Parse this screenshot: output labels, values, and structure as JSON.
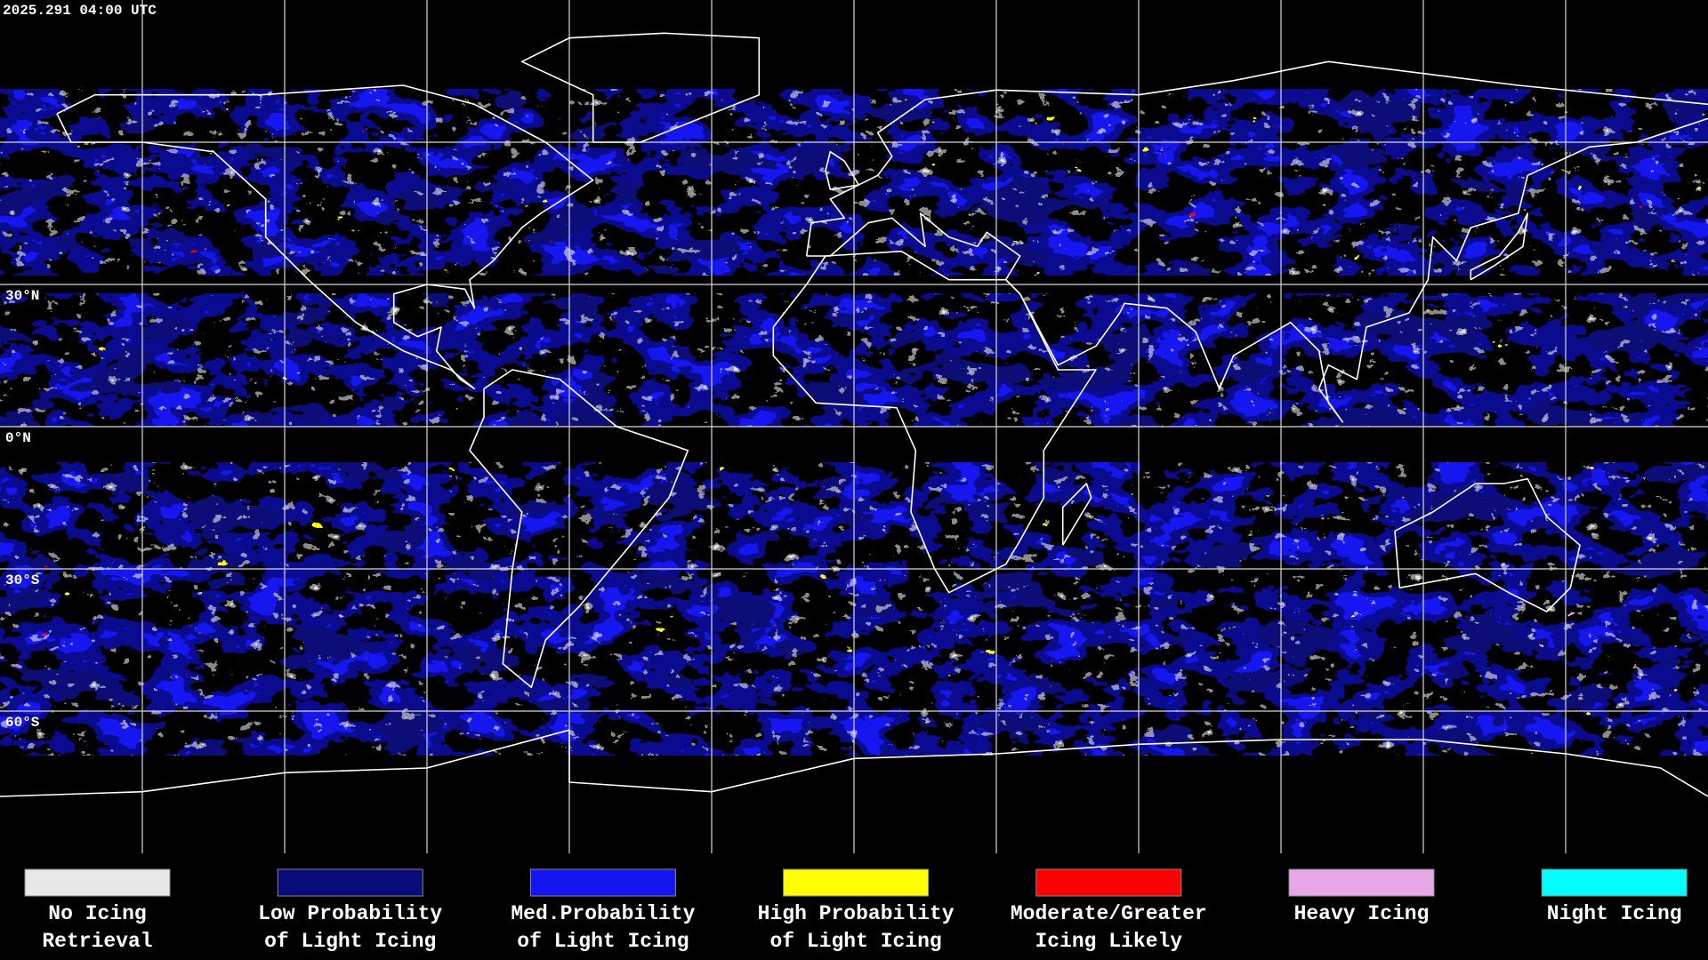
{
  "header": {
    "timestamp": "2025.291 04:00 UTC"
  },
  "map": {
    "latitude_labels": [
      "30°N",
      "0°N",
      "30°S",
      "60°S"
    ]
  },
  "legend": {
    "items": [
      {
        "lines": [
          "No Icing",
          "Retrieval"
        ],
        "color": "#e8e8e8"
      },
      {
        "lines": [
          "Low Probability",
          "of Light Icing"
        ],
        "color": "#0a0a78"
      },
      {
        "lines": [
          "Med.Probability",
          "of Light Icing"
        ],
        "color": "#1414f0"
      },
      {
        "lines": [
          "High Probability",
          "of Light Icing"
        ],
        "color": "#ffff00"
      },
      {
        "lines": [
          "Moderate/Greater",
          "Icing Likely"
        ],
        "color": "#ff0000"
      },
      {
        "lines": [
          "Heavy Icing"
        ],
        "color": "#e8a8e8"
      },
      {
        "lines": [
          "Night Icing"
        ],
        "color": "#00ffff"
      }
    ]
  }
}
